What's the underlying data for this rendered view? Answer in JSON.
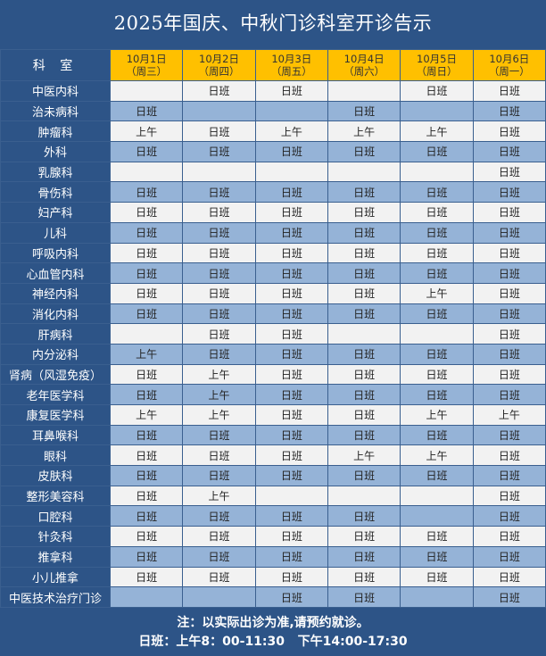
{
  "title": "2025年国庆、中秋门诊科室开诊告示",
  "header": {
    "dept_label": "科 室",
    "days": [
      {
        "date": "10月1日",
        "weekday": "（周三）"
      },
      {
        "date": "10月2日",
        "weekday": "（周四）"
      },
      {
        "date": "10月3日",
        "weekday": "（周五）"
      },
      {
        "date": "10月4日",
        "weekday": "（周六）"
      },
      {
        "date": "10月5日",
        "weekday": "（周日）"
      },
      {
        "date": "10月6日",
        "weekday": "（周一）"
      }
    ]
  },
  "rows": [
    {
      "dept": "中医内科",
      "cells": [
        "",
        "日班",
        "日班",
        "",
        "日班",
        "日班"
      ]
    },
    {
      "dept": "治未病科",
      "cells": [
        "日班",
        "",
        "",
        "日班",
        "",
        "日班"
      ]
    },
    {
      "dept": "肿瘤科",
      "cells": [
        "上午",
        "日班",
        "上午",
        "上午",
        "上午",
        "日班"
      ]
    },
    {
      "dept": "外科",
      "cells": [
        "日班",
        "日班",
        "日班",
        "日班",
        "日班",
        "日班"
      ]
    },
    {
      "dept": "乳腺科",
      "cells": [
        "",
        "",
        "",
        "",
        "",
        "日班"
      ]
    },
    {
      "dept": "骨伤科",
      "cells": [
        "日班",
        "日班",
        "日班",
        "日班",
        "日班",
        "日班"
      ]
    },
    {
      "dept": "妇产科",
      "cells": [
        "日班",
        "日班",
        "日班",
        "日班",
        "日班",
        "日班"
      ]
    },
    {
      "dept": "儿科",
      "cells": [
        "日班",
        "日班",
        "日班",
        "日班",
        "日班",
        "日班"
      ]
    },
    {
      "dept": "呼吸内科",
      "cells": [
        "日班",
        "日班",
        "日班",
        "日班",
        "日班",
        "日班"
      ]
    },
    {
      "dept": "心血管内科",
      "cells": [
        "日班",
        "日班",
        "日班",
        "日班",
        "日班",
        "日班"
      ]
    },
    {
      "dept": "神经内科",
      "cells": [
        "日班",
        "日班",
        "日班",
        "日班",
        "上午",
        "日班"
      ]
    },
    {
      "dept": "消化内科",
      "cells": [
        "日班",
        "日班",
        "日班",
        "日班",
        "日班",
        "日班"
      ]
    },
    {
      "dept": "肝病科",
      "cells": [
        "",
        "日班",
        "日班",
        "",
        "",
        "日班"
      ]
    },
    {
      "dept": "内分泌科",
      "cells": [
        "上午",
        "日班",
        "日班",
        "日班",
        "日班",
        "日班"
      ]
    },
    {
      "dept": "肾病（风湿免疫）",
      "cells": [
        "日班",
        "上午",
        "日班",
        "日班",
        "日班",
        "日班"
      ]
    },
    {
      "dept": "老年医学科",
      "cells": [
        "日班",
        "上午",
        "日班",
        "日班",
        "日班",
        "日班"
      ]
    },
    {
      "dept": "康复医学科",
      "cells": [
        "上午",
        "上午",
        "日班",
        "日班",
        "上午",
        "上午"
      ]
    },
    {
      "dept": "耳鼻喉科",
      "cells": [
        "日班",
        "日班",
        "日班",
        "日班",
        "日班",
        "日班"
      ]
    },
    {
      "dept": "眼科",
      "cells": [
        "日班",
        "日班",
        "日班",
        "上午",
        "上午",
        "日班"
      ]
    },
    {
      "dept": "皮肤科",
      "cells": [
        "日班",
        "日班",
        "日班",
        "日班",
        "日班",
        "日班"
      ]
    },
    {
      "dept": "整形美容科",
      "cells": [
        "日班",
        "上午",
        "",
        "",
        "",
        "日班"
      ]
    },
    {
      "dept": "口腔科",
      "cells": [
        "日班",
        "日班",
        "日班",
        "日班",
        "",
        "日班"
      ]
    },
    {
      "dept": "针灸科",
      "cells": [
        "日班",
        "日班",
        "日班",
        "日班",
        "日班",
        "日班"
      ]
    },
    {
      "dept": "推拿科",
      "cells": [
        "日班",
        "日班",
        "日班",
        "日班",
        "日班",
        "日班"
      ]
    },
    {
      "dept": "小儿推拿",
      "cells": [
        "日班",
        "日班",
        "日班",
        "日班",
        "日班",
        "日班"
      ]
    },
    {
      "dept": "中医技术治疗门诊",
      "cells": [
        "",
        "",
        "日班",
        "日班",
        "",
        "日班"
      ]
    }
  ],
  "footer": {
    "note": "注：以实际出诊为准,请预约就诊。",
    "hours": "日班：上午8：00-11:30   下午14:00-17:30"
  },
  "colors": {
    "background": "#2d5487",
    "header": "#ffc000",
    "row_blue": "#95b3d7",
    "row_white": "#f2f2f2"
  }
}
